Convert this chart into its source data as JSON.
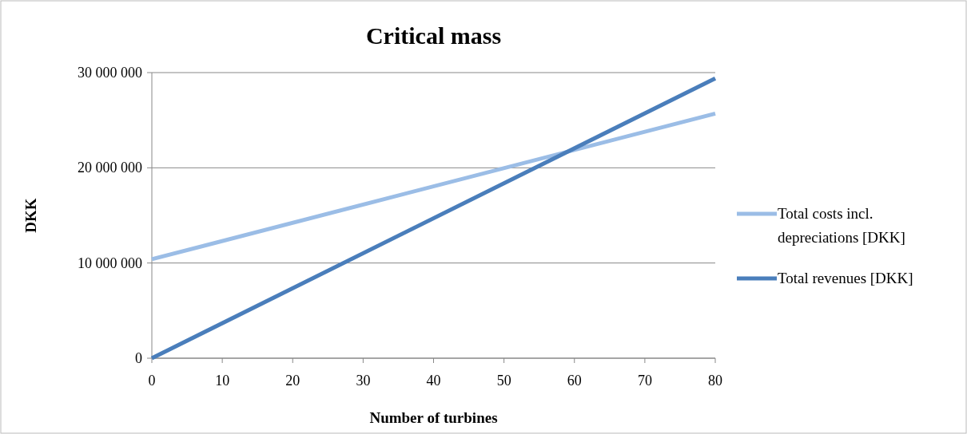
{
  "chart_data": {
    "type": "line",
    "title": "Critical mass",
    "xlabel": "Number of turbines",
    "ylabel": "DKK",
    "x": [
      0,
      80
    ],
    "series": [
      {
        "name": "Total costs incl. depreciations [DKK]",
        "color": "#9bbde6",
        "values": [
          10400000,
          25700000
        ]
      },
      {
        "name": "Total revenues [DKK]",
        "color": "#4a7ebb",
        "values": [
          0,
          29400000
        ]
      }
    ],
    "xlim": [
      0,
      80
    ],
    "xticks": [
      0,
      10,
      20,
      30,
      40,
      50,
      60,
      70,
      80
    ],
    "ylim": [
      0,
      30000000
    ],
    "yticks": [
      {
        "value": 0,
        "label": "0"
      },
      {
        "value": 10000000,
        "label": "10 000 000"
      },
      {
        "value": 20000000,
        "label": "20 000 000"
      },
      {
        "value": 30000000,
        "label": "30 000 000"
      }
    ],
    "grid": "y",
    "legend": "right",
    "line_style": "solid"
  }
}
